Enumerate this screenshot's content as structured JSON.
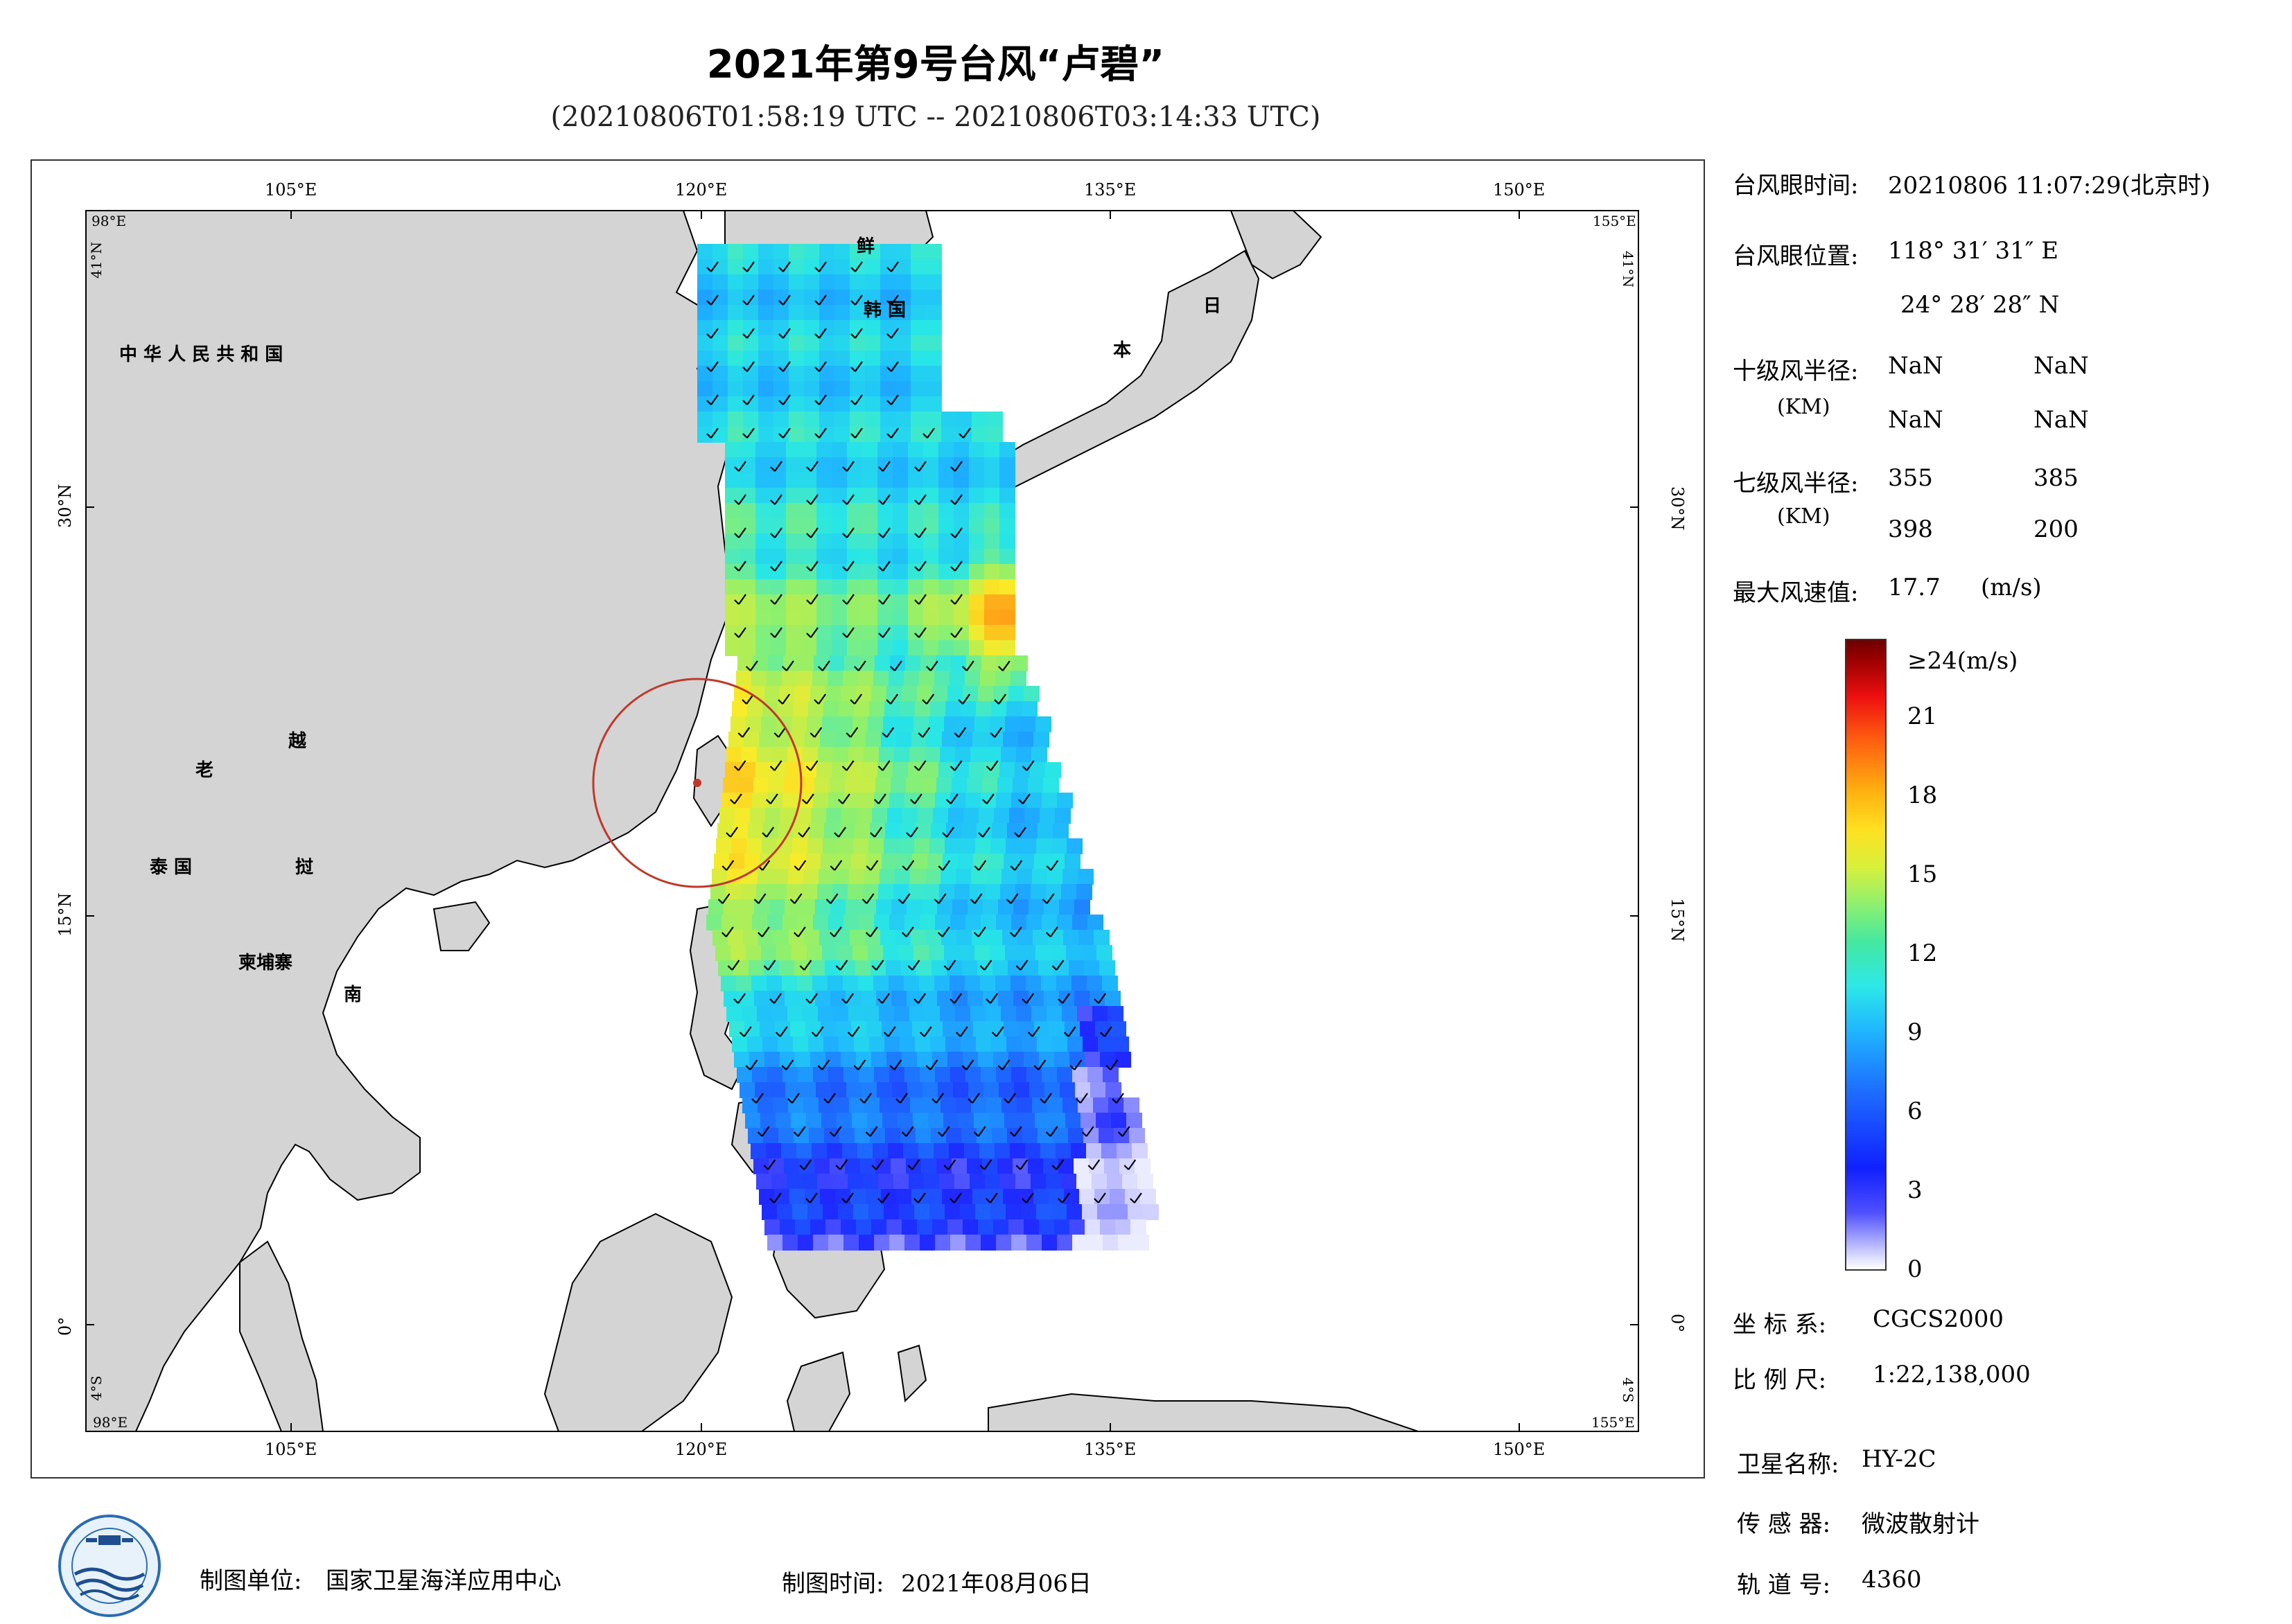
{
  "header": {
    "title": "2021年第9号台风“卢碧”",
    "subtitle": "(20210806T01:58:19 UTC -- 20210806T03:14:33 UTC)"
  },
  "map": {
    "lon_ticks": [
      "105°E",
      "120°E",
      "135°E",
      "150°E"
    ],
    "lat_ticks": [
      "30°N",
      "15°N",
      "0°"
    ],
    "corner_labels": {
      "top_left_lon": "98°E",
      "top_left_lat": "41°N",
      "top_right_lon": "155°E",
      "top_right_lat": "41°N",
      "bottom_left_lon": "98°E",
      "bottom_left_lat": "4°S",
      "bottom_right_lon": "155°E",
      "bottom_right_lat": "4°S"
    },
    "country_labels": [
      "中 华 人 民 共 和 国",
      "鲜",
      "韩 国",
      "日",
      "本",
      "老",
      "越",
      "泰 国",
      "挝",
      "柬埔寨",
      "南"
    ],
    "extent": {
      "lon_min": 98,
      "lon_max": 155,
      "lat_min": -4,
      "lat_max": 41
    },
    "typhoon_eye": {
      "lon": 118.525,
      "lat": 24.475
    }
  },
  "info": {
    "eye_time_label": "台风眼时间:",
    "eye_time_value": "20210806 11:07:29(北京时)",
    "eye_pos_label": "台风眼位置:",
    "eye_pos_lon": "118° 31′ 31″ E",
    "eye_pos_lat": "24° 28′ 28″ N",
    "r10_label": "十级风半径:",
    "r10_unit": "(KM)",
    "r10_values": [
      "NaN",
      "NaN",
      "NaN",
      "NaN"
    ],
    "r7_label": "七级风半径:",
    "r7_unit": "(KM)",
    "r7_values": [
      "355",
      "385",
      "398",
      "200"
    ],
    "max_wind_label": "最大风速值:",
    "max_wind_value": "17.7",
    "max_wind_unit": "(m/s)"
  },
  "colorbar": {
    "top_label": "≥24(m/s)",
    "ticks": [
      "21",
      "18",
      "15",
      "12",
      "9",
      "6",
      "3",
      "0"
    ],
    "tick_values": [
      21,
      18,
      15,
      12,
      9,
      6,
      3,
      0
    ],
    "max": 24
  },
  "meta": {
    "crs_label": "坐 标 系:",
    "crs_value": "CGCS2000",
    "scale_label": "比 例 尺:",
    "scale_value": "1:22,138,000",
    "satellite_label": "卫星名称:",
    "satellite_value": "HY-2C",
    "sensor_label": "传 感 器:",
    "sensor_value": "微波散射计",
    "orbit_label": "轨 道 号:",
    "orbit_value": "4360"
  },
  "footer": {
    "unit_label": "制图单位:",
    "unit_value": "国家卫星海洋应用中心",
    "time_label": "制图时间:",
    "time_value": "2021年08月06日"
  },
  "colors": {
    "land": "#d4d4d4",
    "coast": "#000000",
    "circle": "#c0392b"
  }
}
